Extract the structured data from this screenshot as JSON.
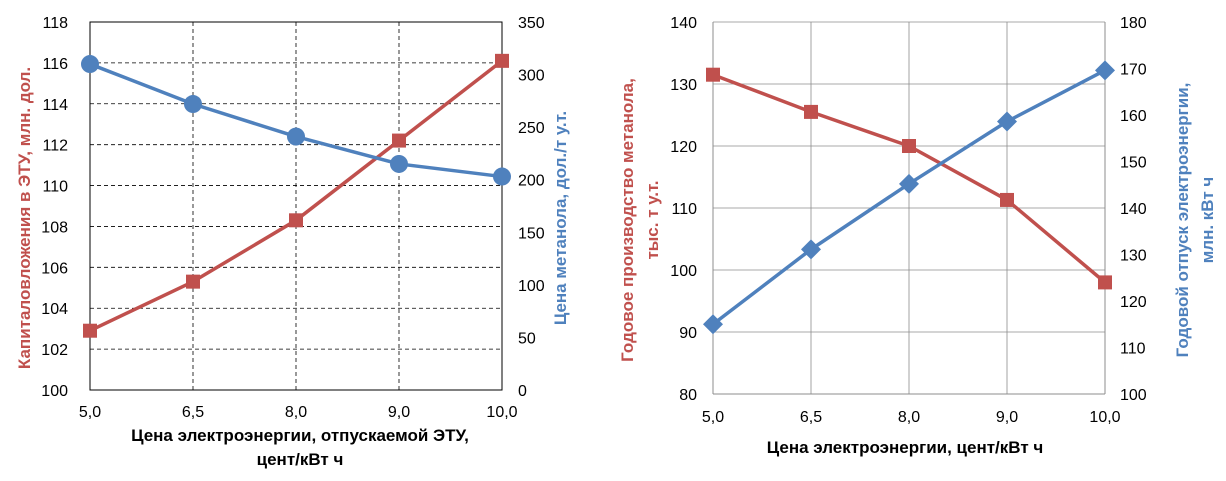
{
  "colors": {
    "red": "#c0504d",
    "blue": "#4f81bd"
  },
  "chart_data": [
    {
      "type": "line",
      "categories": [
        "5,0",
        "6,5",
        "8,0",
        "9,0",
        "10,0"
      ],
      "xlabel_lines": [
        "Цена электроэнергии, отпускаемой ЭТУ,",
        "цент/кВт ч"
      ],
      "ylabel_left": "Капиталовложения в ЭТУ, млн. дол.",
      "ylabel_right": "Цена метанола, дол./т у.т.",
      "ylim_left": [
        100,
        118
      ],
      "ylim_right": [
        0,
        350
      ],
      "yticks_left": [
        "100",
        "102",
        "104",
        "106",
        "108",
        "110",
        "112",
        "114",
        "116",
        "118"
      ],
      "yticks_right": [
        "0",
        "50",
        "100",
        "150",
        "200",
        "250",
        "300",
        "350"
      ],
      "grid": "dashed",
      "series": [
        {
          "axis": "left",
          "color": "#c0504d",
          "marker": "square",
          "values": [
            102.9,
            105.3,
            108.3,
            112.2,
            116.1
          ]
        },
        {
          "axis": "right",
          "color": "#4f81bd",
          "marker": "circle",
          "values": [
            310,
            272,
            241,
            215,
            203
          ]
        }
      ]
    },
    {
      "type": "line",
      "categories": [
        "5,0",
        "6,5",
        "8,0",
        "9,0",
        "10,0"
      ],
      "xlabel_lines": [
        "Цена электроэнергии, цент/кВт ч"
      ],
      "ylabel_left_lines": [
        "Годовое производство метанола,",
        "тыс. т у.т."
      ],
      "ylabel_right_lines": [
        "Годовой отпуск электроэнергии,",
        "млн. кВт ч"
      ],
      "ylim_left": [
        80,
        140
      ],
      "ylim_right": [
        100,
        180
      ],
      "yticks_left": [
        "80",
        "90",
        "100",
        "110",
        "120",
        "130",
        "140"
      ],
      "yticks_right": [
        "100",
        "110",
        "120",
        "130",
        "140",
        "150",
        "160",
        "170",
        "180"
      ],
      "grid": "solid",
      "series": [
        {
          "axis": "left",
          "color": "#c0504d",
          "marker": "square",
          "values": [
            131.5,
            125.5,
            120,
            111.3,
            98
          ]
        },
        {
          "axis": "right",
          "color": "#4f81bd",
          "marker": "diamond",
          "values": [
            115,
            131.1,
            145.2,
            158.6,
            169.6
          ]
        }
      ]
    }
  ]
}
